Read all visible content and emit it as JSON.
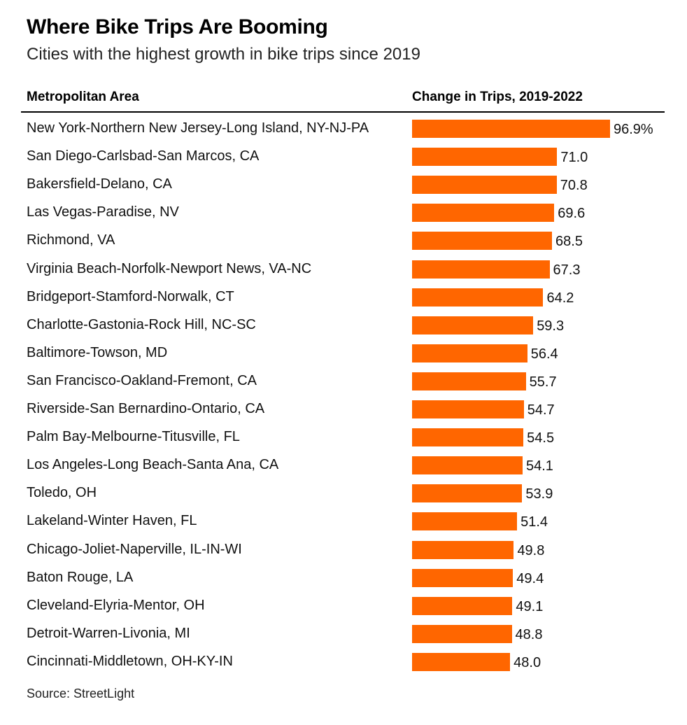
{
  "chart_data": {
    "type": "bar",
    "orientation": "horizontal",
    "title": "Where Bike Trips Are Booming",
    "subtitle": "Cities with the highest growth in bike trips since 2019",
    "column_headers": {
      "category": "Metropolitan Area",
      "value": "Change in Trips, 2019-2022"
    },
    "categories": [
      "New York-Northern New Jersey-Long Island, NY-NJ-PA",
      "San Diego-Carlsbad-San Marcos, CA",
      "Bakersfield-Delano, CA",
      "Las Vegas-Paradise, NV",
      "Richmond, VA",
      "Virginia Beach-Norfolk-Newport News, VA-NC",
      "Bridgeport-Stamford-Norwalk, CT",
      "Charlotte-Gastonia-Rock Hill, NC-SC",
      "Baltimore-Towson, MD",
      "San Francisco-Oakland-Fremont, CA",
      "Riverside-San Bernardino-Ontario, CA",
      "Palm Bay-Melbourne-Titusville, FL",
      "Los Angeles-Long Beach-Santa Ana, CA",
      "Toledo, OH",
      "Lakeland-Winter Haven, FL",
      "Chicago-Joliet-Naperville, IL-IN-WI",
      "Baton Rouge, LA",
      "Cleveland-Elyria-Mentor, OH",
      "Detroit-Warren-Livonia, MI",
      "Cincinnati-Middletown, OH-KY-IN"
    ],
    "values": [
      96.9,
      71.0,
      70.8,
      69.6,
      68.5,
      67.3,
      64.2,
      59.3,
      56.4,
      55.7,
      54.7,
      54.5,
      54.1,
      53.9,
      51.4,
      49.8,
      49.4,
      49.1,
      48.8,
      48.0
    ],
    "value_labels": [
      "96.9%",
      "71.0",
      "70.8",
      "69.6",
      "68.5",
      "67.3",
      "64.2",
      "59.3",
      "56.4",
      "55.7",
      "54.7",
      "54.5",
      "54.1",
      "53.9",
      "51.4",
      "49.8",
      "49.4",
      "49.1",
      "48.8",
      "48.0"
    ],
    "xlim": [
      0,
      96.9
    ],
    "bar_color": "#ff6600",
    "grid": false,
    "legend": "none"
  },
  "source": "Source: StreetLight"
}
